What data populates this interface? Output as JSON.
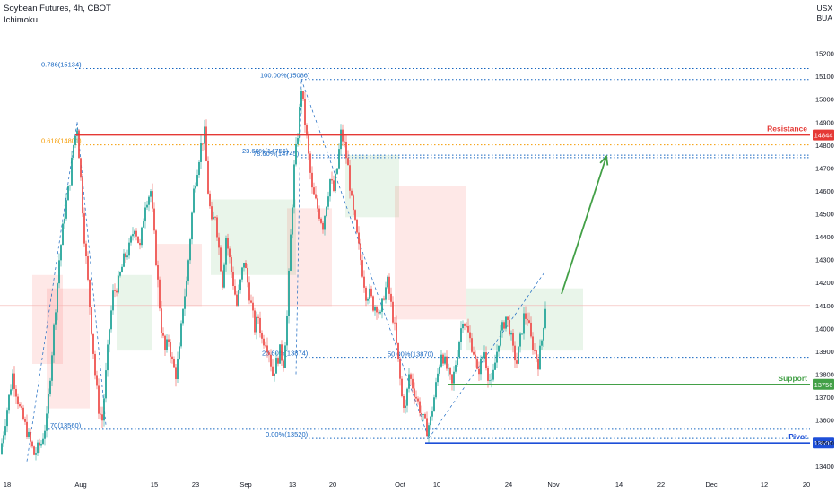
{
  "header": {
    "title": "Soybean Futures, 4h, CBOT",
    "indicator": "Ichimoku",
    "currency_line1": "USX",
    "currency_line2": "BUA"
  },
  "colors": {
    "bull": "#26a69a",
    "bear": "#ef5350",
    "resistance": "#e53935",
    "support": "#43a047",
    "pivot": "#1e4fd8",
    "fib": "#1565c0",
    "fib618": "#f59b00",
    "arrow": "#43a047",
    "cloud_green": "rgba(76,175,80,0.12)",
    "cloud_red": "rgba(244,67,54,0.12)",
    "grid_text": "#131722"
  },
  "chart_data": {
    "type": "candlestick",
    "ylim": [
      13360,
      15300
    ],
    "x_ticks": [
      "18",
      "Aug",
      "15",
      "23",
      "Sep",
      "13",
      "20",
      "Oct",
      "10",
      "24",
      "Nov",
      "14",
      "22",
      "Dec",
      "12",
      "20"
    ],
    "y_ticks": [
      13400,
      13500,
      13600,
      13700,
      13800,
      13900,
      14000,
      14100,
      14200,
      14300,
      14400,
      14500,
      14600,
      14700,
      14800,
      14900,
      15000,
      15100,
      15200
    ],
    "levels": [
      {
        "name": "Resistance",
        "value": 14844,
        "label": "14844",
        "color": "resistance"
      },
      {
        "name": "Support",
        "value": 13756,
        "label": "13756",
        "color": "support"
      },
      {
        "name": "Pivot",
        "value": 13500,
        "label": "13500",
        "color": "pivot"
      }
    ],
    "fib_labels": [
      {
        "text": "0.786(15134)",
        "value": 15134
      },
      {
        "text": "0.618(14801)",
        "value": 14801
      },
      {
        "text": "100.00%(15086)",
        "value": 15086
      },
      {
        "text": "23.60%(14756)",
        "value": 14756
      },
      {
        "text": "78.60%(14745)",
        "value": 14745
      },
      {
        "text": "23.60%(13874)",
        "value": 13874
      },
      {
        "text": "50.00%(13870)",
        "value": 13870
      },
      {
        "text": "70(13560)",
        "value": 13560
      },
      {
        "text": "0.00%(13520)",
        "value": 13520
      }
    ],
    "last_price": 14100,
    "arrow_target": 14750,
    "price_path": [
      [
        0,
        13450
      ],
      [
        6,
        13600
      ],
      [
        14,
        13800
      ],
      [
        22,
        13650
      ],
      [
        30,
        13550
      ],
      [
        38,
        13450
      ],
      [
        46,
        13500
      ],
      [
        52,
        13600
      ],
      [
        58,
        13900
      ],
      [
        66,
        14300
      ],
      [
        72,
        14500
      ],
      [
        78,
        14650
      ],
      [
        82,
        14800
      ],
      [
        86,
        14880
      ],
      [
        90,
        14650
      ],
      [
        94,
        14400
      ],
      [
        98,
        14200
      ],
      [
        102,
        14000
      ],
      [
        106,
        13800
      ],
      [
        110,
        13650
      ],
      [
        114,
        13600
      ],
      [
        118,
        13800
      ],
      [
        122,
        14000
      ],
      [
        126,
        14150
      ],
      [
        132,
        14200
      ],
      [
        138,
        14300
      ],
      [
        144,
        14350
      ],
      [
        150,
        14450
      ],
      [
        156,
        14350
      ],
      [
        162,
        14550
      ],
      [
        168,
        14600
      ],
      [
        172,
        14400
      ],
      [
        176,
        14200
      ],
      [
        180,
        14000
      ],
      [
        184,
        13900
      ],
      [
        188,
        13950
      ],
      [
        192,
        13850
      ],
      [
        196,
        13800
      ],
      [
        200,
        13900
      ],
      [
        204,
        14100
      ],
      [
        208,
        14200
      ],
      [
        212,
        14400
      ],
      [
        216,
        14600
      ],
      [
        220,
        14700
      ],
      [
        224,
        14800
      ],
      [
        228,
        14850
      ],
      [
        232,
        14600
      ],
      [
        236,
        14450
      ],
      [
        240,
        14500
      ],
      [
        244,
        14350
      ],
      [
        248,
        14200
      ],
      [
        252,
        14400
      ],
      [
        256,
        14300
      ],
      [
        260,
        14200
      ],
      [
        264,
        14100
      ],
      [
        268,
        14200
      ],
      [
        272,
        14300
      ],
      [
        276,
        14200
      ],
      [
        280,
        14100
      ],
      [
        284,
        14000
      ],
      [
        288,
        14050
      ],
      [
        292,
        13950
      ],
      [
        296,
        13950
      ],
      [
        300,
        13900
      ],
      [
        304,
        13800
      ],
      [
        308,
        13850
      ],
      [
        312,
        13900
      ],
      [
        316,
        13850
      ],
      [
        320,
        14050
      ],
      [
        324,
        14400
      ],
      [
        328,
        14700
      ],
      [
        332,
        14850
      ],
      [
        336,
        15050
      ],
      [
        340,
        14900
      ],
      [
        344,
        14750
      ],
      [
        348,
        14600
      ],
      [
        352,
        14550
      ],
      [
        356,
        14500
      ],
      [
        360,
        14450
      ],
      [
        364,
        14550
      ],
      [
        368,
        14650
      ],
      [
        372,
        14600
      ],
      [
        376,
        14700
      ],
      [
        380,
        14850
      ],
      [
        384,
        14800
      ],
      [
        388,
        14700
      ],
      [
        392,
        14550
      ],
      [
        396,
        14450
      ],
      [
        400,
        14350
      ],
      [
        404,
        14250
      ],
      [
        408,
        14150
      ],
      [
        412,
        14150
      ],
      [
        416,
        14100
      ],
      [
        420,
        14100
      ],
      [
        424,
        14050
      ],
      [
        428,
        14150
      ],
      [
        432,
        14200
      ],
      [
        436,
        14100
      ],
      [
        440,
        14000
      ],
      [
        444,
        13850
      ],
      [
        448,
        13700
      ],
      [
        452,
        13650
      ],
      [
        456,
        13800
      ],
      [
        460,
        13750
      ],
      [
        464,
        13700
      ],
      [
        468,
        13650
      ],
      [
        472,
        13600
      ],
      [
        476,
        13560
      ],
      [
        480,
        13600
      ],
      [
        484,
        13700
      ],
      [
        488,
        13800
      ],
      [
        492,
        13900
      ],
      [
        496,
        13850
      ],
      [
        500,
        13800
      ],
      [
        504,
        13750
      ],
      [
        508,
        13850
      ],
      [
        512,
        13950
      ],
      [
        516,
        14050
      ],
      [
        520,
        14000
      ],
      [
        524,
        13950
      ],
      [
        528,
        13900
      ],
      [
        532,
        13800
      ],
      [
        536,
        13850
      ],
      [
        540,
        13900
      ],
      [
        544,
        13800
      ],
      [
        548,
        13750
      ],
      [
        552,
        13850
      ],
      [
        556,
        13950
      ],
      [
        560,
        14000
      ],
      [
        564,
        14050
      ],
      [
        568,
        14000
      ],
      [
        572,
        13900
      ],
      [
        576,
        13850
      ],
      [
        580,
        13950
      ],
      [
        584,
        14050
      ],
      [
        588,
        14050
      ],
      [
        592,
        13950
      ],
      [
        596,
        13900
      ],
      [
        600,
        13850
      ],
      [
        604,
        13950
      ],
      [
        608,
        14100
      ]
    ]
  }
}
